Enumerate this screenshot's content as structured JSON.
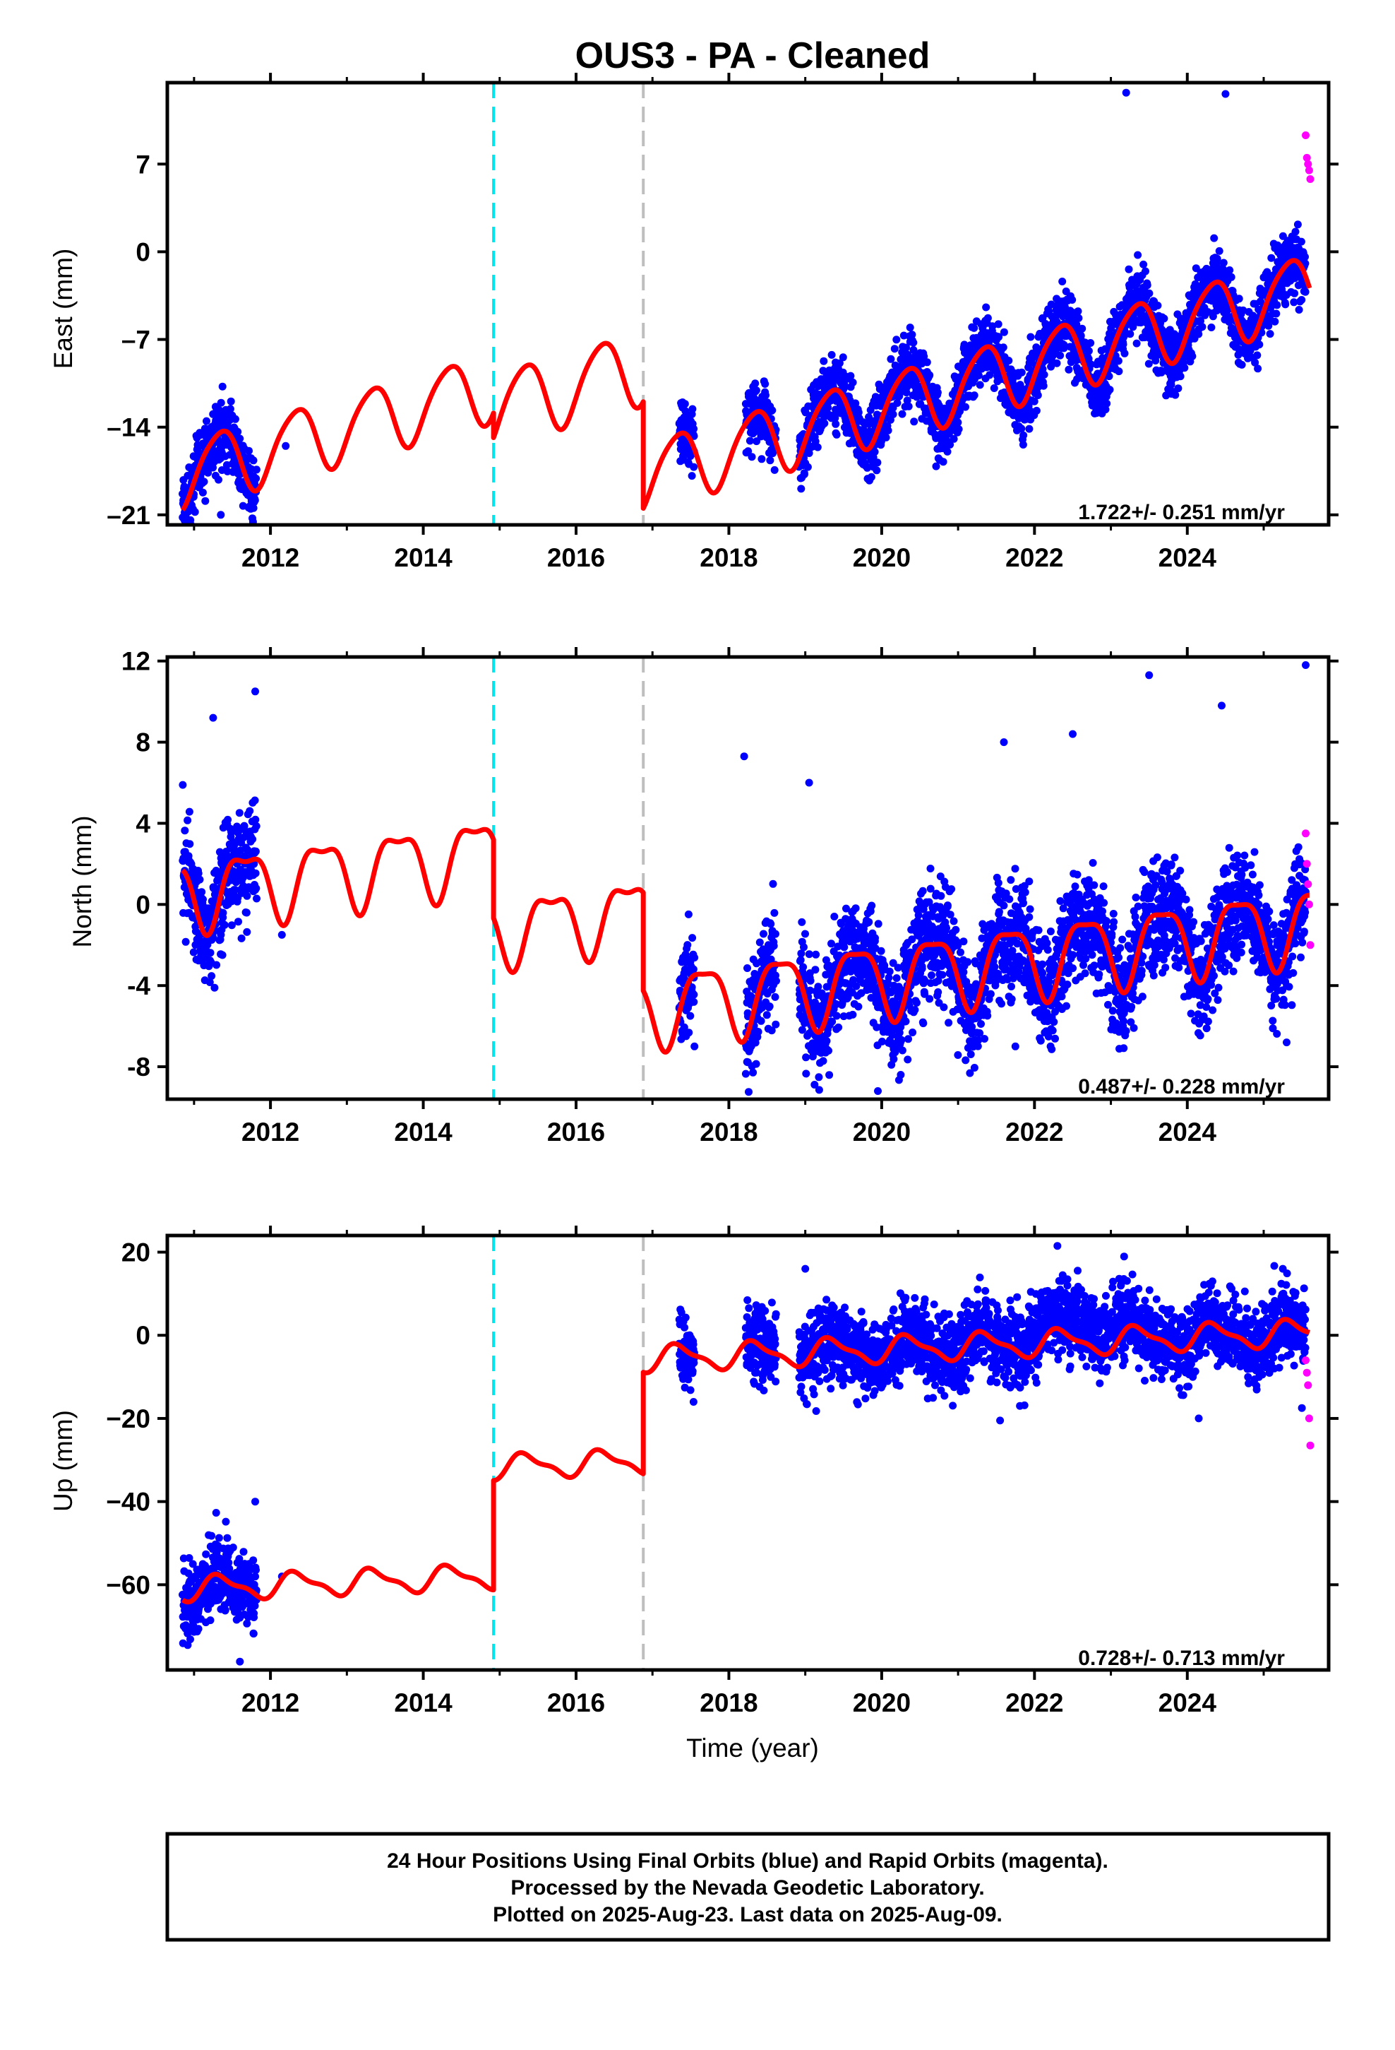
{
  "colors": {
    "final": "#0000ff",
    "rapid": "#ff00ff",
    "model": "#ff0000",
    "equip_line": "#00e5ee",
    "other_line": "#bebebe",
    "axes": "#000000"
  },
  "notes": [
    "24 Hour Positions Using Final Orbits (blue) and Rapid Orbits (magenta).",
    "Processed by the Nevada Geodetic Laboratory.",
    "Plotted on 2025-Aug-23. Last data on 2025-Aug-09."
  ],
  "chart_data": {
    "type": "scatter",
    "title": "OUS3  - PA - Cleaned",
    "xlabel": "Time (year)",
    "xlim": [
      2010.65,
      2025.85
    ],
    "x_ticks": [
      2012,
      2014,
      2016,
      2018,
      2020,
      2022,
      2024
    ],
    "x_tick_labels": [
      "2012",
      "2014",
      "2016",
      "2018",
      "2020",
      "2022",
      "2024"
    ],
    "vertical_lines": [
      {
        "x": 2014.92,
        "style": "dashed",
        "color": "#00e5ee"
      },
      {
        "x": 2016.88,
        "style": "dashed",
        "color": "#bebebe"
      }
    ],
    "series_names": [
      "Final Orbits",
      "Rapid Orbits"
    ],
    "data_spans": [
      [
        2010.85,
        2011.82
      ],
      [
        2017.35,
        2017.55
      ],
      [
        2018.22,
        2018.62
      ],
      [
        2018.92,
        2025.55
      ]
    ],
    "rapid_span": [
      2025.55,
      2025.61
    ],
    "panels": [
      {
        "name": "east",
        "ylabel": "East (mm)",
        "ylim": [
          -21.8,
          13.5
        ],
        "y_ticks": [
          -21,
          -14,
          -7,
          0,
          7
        ],
        "y_tick_labels": [
          "–21",
          "–14",
          "–7",
          "0",
          "7"
        ],
        "rate_text": "1.722+/- 0.251 mm/yr",
        "model": {
          "segments": [
            {
              "x0": 2010.85,
              "x1": 2014.92,
              "mean": -14.2,
              "slope": 1.722,
              "a1": 2.7,
              "ph1": 0.08,
              "a2": 0.4,
              "ph2": 0.9
            },
            {
              "x0": 2014.92,
              "x1": 2016.88,
              "mean": -10.8,
              "slope": 1.722,
              "a1": 2.9,
              "ph1": 0.08,
              "a2": 0.4,
              "ph2": 0.9
            },
            {
              "x0": 2016.88,
              "x1": 2025.6,
              "mean": -10.3,
              "slope": 1.722,
              "a1": 2.7,
              "ph1": 0.08,
              "a2": 0.4,
              "ph2": 0.9
            }
          ]
        },
        "scatter": {
          "noise": 1.3,
          "outliers": [
            [
              2011.35,
              -21.0
            ],
            [
              2023.2,
              12.7
            ],
            [
              2024.5,
              12.6
            ],
            [
              2012.2,
              -15.5
            ],
            [
              2021.95,
              -6.8
            ],
            [
              2024.3,
              -3.2
            ]
          ]
        },
        "rapid_points": [
          9.3,
          7.5,
          7.0,
          6.5,
          5.8
        ]
      },
      {
        "name": "north",
        "ylabel": "North (mm)",
        "ylim": [
          -9.6,
          12.2
        ],
        "y_ticks": [
          -8,
          -4,
          0,
          4,
          8,
          12
        ],
        "y_tick_labels": [
          "-8",
          "-4",
          "0",
          "4",
          "8",
          "12"
        ],
        "rate_text": "0.487+/- 0.228 mm/yr",
        "model": {
          "segments": [
            {
              "x0": 2010.85,
              "x1": 2014.92,
              "mean": 1.6,
              "slope": 0.487,
              "a1": 1.7,
              "ph1": 0.42,
              "a2": 0.6,
              "ph2": 0.3
            },
            {
              "x0": 2014.92,
              "x1": 2016.88,
              "mean": -0.8,
              "slope": 0.487,
              "a1": 1.6,
              "ph1": 0.42,
              "a2": 0.6,
              "ph2": 0.3
            },
            {
              "x0": 2016.88,
              "x1": 2025.6,
              "mean": -3.0,
              "slope": 0.487,
              "a1": 1.8,
              "ph1": 0.42,
              "a2": 0.5,
              "ph2": 0.3
            }
          ]
        },
        "scatter": {
          "noise": 1.3,
          "outliers": [
            [
              2011.25,
              9.2
            ],
            [
              2011.8,
              10.5
            ],
            [
              2012.15,
              -1.5
            ],
            [
              2017.55,
              -7.0
            ],
            [
              2018.2,
              7.3
            ],
            [
              2019.95,
              -9.2
            ],
            [
              2020.25,
              -8.4
            ],
            [
              2021.6,
              8.0
            ],
            [
              2022.5,
              8.4
            ],
            [
              2023.5,
              11.3
            ],
            [
              2024.45,
              9.8
            ],
            [
              2025.3,
              -6.8
            ],
            [
              2025.55,
              11.8
            ],
            [
              2019.05,
              6.0
            ],
            [
              2021.75,
              -7.0
            ]
          ]
        },
        "rapid_points": [
          3.5,
          2.0,
          1.0,
          0.0,
          -2.0
        ]
      },
      {
        "name": "up",
        "ylabel": "Up (mm)",
        "ylim": [
          -80.5,
          24.0
        ],
        "y_ticks": [
          -60,
          -40,
          -20,
          0,
          20
        ],
        "y_tick_labels": [
          "−60",
          "−40",
          "−20",
          "0",
          "20"
        ],
        "rate_text": "0.728+/- 0.713 mm/yr",
        "model": {
          "segments": [
            {
              "x0": 2010.85,
              "x1": 2014.92,
              "mean": -59.5,
              "slope": 0.728,
              "a1": 2.7,
              "ph1": 0.1,
              "a2": 1.0,
              "ph2": 0.6
            },
            {
              "x0": 2014.92,
              "x1": 2016.88,
              "mean": -31.0,
              "slope": 0.728,
              "a1": 2.7,
              "ph1": 0.1,
              "a2": 1.0,
              "ph2": 0.6
            },
            {
              "x0": 2016.88,
              "x1": 2025.6,
              "mean": -2.5,
              "slope": 0.728,
              "a1": 2.9,
              "ph1": 0.1,
              "a2": 1.0,
              "ph2": 0.6
            }
          ]
        },
        "scatter": {
          "noise": 4.5,
          "outliers": [
            [
              2011.6,
              -78.5
            ],
            [
              2011.8,
              -40.0
            ],
            [
              2012.15,
              -58.0
            ],
            [
              2022.3,
              21.5
            ],
            [
              2021.55,
              -20.5
            ],
            [
              2024.15,
              -20.0
            ],
            [
              2025.5,
              -17.5
            ],
            [
              2019.0,
              16.0
            ],
            [
              2025.25,
              16.0
            ]
          ]
        },
        "rapid_points": [
          -6.0,
          -9.0,
          -12.0,
          -20.0,
          -26.5
        ]
      }
    ]
  }
}
